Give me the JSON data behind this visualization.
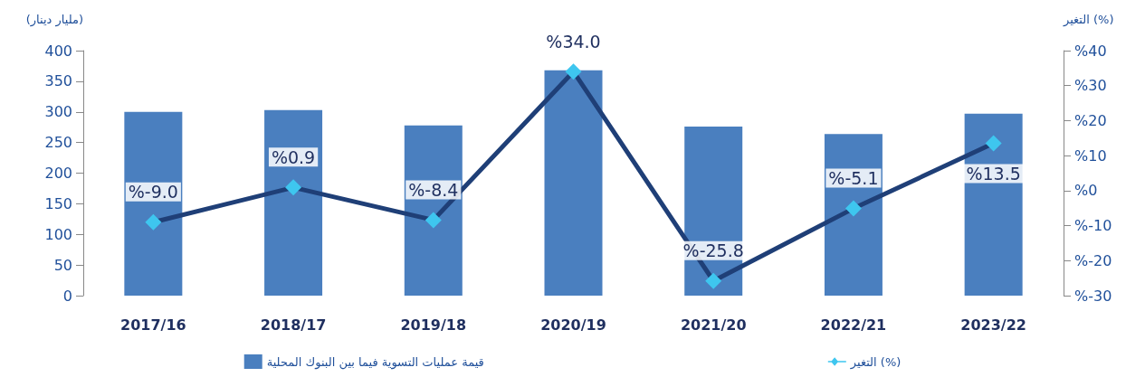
{
  "chart_data": {
    "type": "bar",
    "ylabel": "(مليار دينار)",
    "y2label": "التغير (%)",
    "categories": [
      "2017/16",
      "2018/17",
      "2019/18",
      "2020/19",
      "2021/20",
      "2022/21",
      "2023/22"
    ],
    "series": [
      {
        "name": "قيمة عمليات التسوية فيما بين البنوك المحلية",
        "color": "#4a7fbf",
        "values": [
          300,
          303,
          278,
          368,
          276,
          264,
          297
        ]
      },
      {
        "name": "التغير (%)",
        "type": "line",
        "axis": "y2",
        "color": "#1f3f77",
        "marker": "diamond",
        "values": [
          -9.0,
          0.9,
          -8.4,
          34.0,
          -25.8,
          -5.1,
          13.5
        ],
        "value_labels": [
          "%-9.0",
          "%0.9",
          "%-8.4",
          "%34.0",
          "%-25.8",
          "%-5.1",
          "%13.5"
        ]
      }
    ],
    "ylim": [
      0,
      400
    ],
    "yticks": [
      0,
      50,
      100,
      150,
      200,
      250,
      300,
      350,
      400
    ],
    "y2lim": [
      -30,
      40
    ],
    "y2ticks": [
      {
        "value": -30,
        "label": "%-30"
      },
      {
        "value": -20,
        "label": "%-20"
      },
      {
        "value": -10,
        "label": "%-10"
      },
      {
        "value": 0,
        "label": "%0"
      },
      {
        "value": 10,
        "label": "%10"
      },
      {
        "value": 20,
        "label": "%20"
      },
      {
        "value": 30,
        "label": "%30"
      },
      {
        "value": 40,
        "label": "%40"
      }
    ],
    "grid": false,
    "legend": "bottom"
  }
}
